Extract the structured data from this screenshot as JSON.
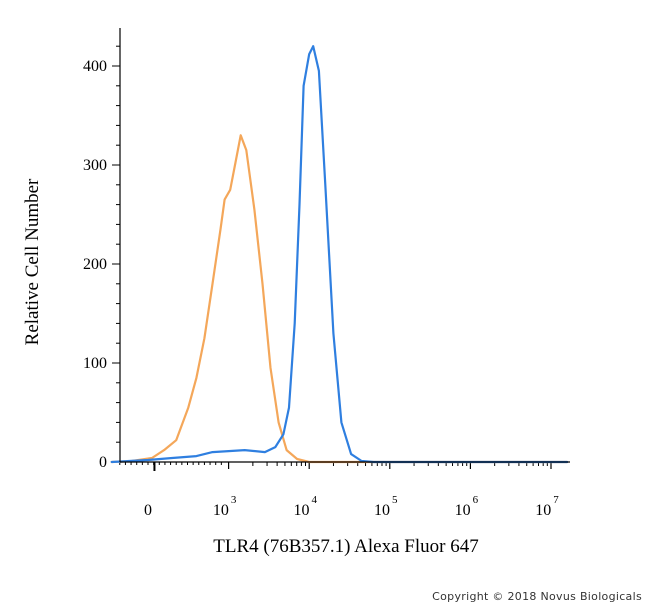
{
  "chart_data": {
    "type": "line",
    "title": "",
    "xlabel": "TLR4 (76B357.1) Alexa Fluor 647",
    "ylabel": "Relative Cell Number",
    "ylim": [
      0,
      420
    ],
    "yticks": [
      {
        "value": 0,
        "label": "0"
      },
      {
        "value": 100,
        "label": "100"
      },
      {
        "value": 200,
        "label": "200"
      },
      {
        "value": 300,
        "label": "300"
      },
      {
        "value": 400,
        "label": "400"
      }
    ],
    "xticks": [
      {
        "pos": 0,
        "label": "0",
        "exp": ""
      },
      {
        "pos": 1,
        "label": "10",
        "exp": "3"
      },
      {
        "pos": 2,
        "label": "10",
        "exp": "4"
      },
      {
        "pos": 3,
        "label": "10",
        "exp": "5"
      },
      {
        "pos": 4,
        "label": "10",
        "exp": "6"
      },
      {
        "pos": 5,
        "label": "10",
        "exp": "7"
      }
    ],
    "grid": false,
    "series": [
      {
        "color": "#F4A75A",
        "points": [
          [
            -0.45,
            0
          ],
          [
            -0.2,
            1
          ],
          [
            0.05,
            4
          ],
          [
            0.2,
            12
          ],
          [
            0.35,
            22
          ],
          [
            0.5,
            55
          ],
          [
            0.6,
            85
          ],
          [
            0.7,
            125
          ],
          [
            0.8,
            180
          ],
          [
            0.9,
            235
          ],
          [
            0.95,
            265
          ],
          [
            1.02,
            275
          ],
          [
            1.08,
            300
          ],
          [
            1.15,
            330
          ],
          [
            1.22,
            315
          ],
          [
            1.32,
            255
          ],
          [
            1.42,
            180
          ],
          [
            1.52,
            95
          ],
          [
            1.62,
            40
          ],
          [
            1.72,
            12
          ],
          [
            1.85,
            3
          ],
          [
            2.0,
            0
          ],
          [
            5.2,
            0
          ]
        ]
      },
      {
        "color": "#2F7FE0",
        "points": [
          [
            -0.45,
            0
          ],
          [
            0.0,
            2
          ],
          [
            0.3,
            4
          ],
          [
            0.6,
            6
          ],
          [
            0.8,
            10
          ],
          [
            1.0,
            11
          ],
          [
            1.2,
            12
          ],
          [
            1.45,
            10
          ],
          [
            1.58,
            15
          ],
          [
            1.68,
            28
          ],
          [
            1.75,
            55
          ],
          [
            1.82,
            140
          ],
          [
            1.88,
            260
          ],
          [
            1.93,
            380
          ],
          [
            2.0,
            412
          ],
          [
            2.05,
            420
          ],
          [
            2.12,
            395
          ],
          [
            2.2,
            280
          ],
          [
            2.3,
            130
          ],
          [
            2.4,
            40
          ],
          [
            2.52,
            8
          ],
          [
            2.65,
            1
          ],
          [
            2.8,
            0
          ],
          [
            5.2,
            0
          ]
        ]
      }
    ]
  },
  "footer": {
    "copyright": "Copyright © 2018 Novus Biologicals"
  }
}
